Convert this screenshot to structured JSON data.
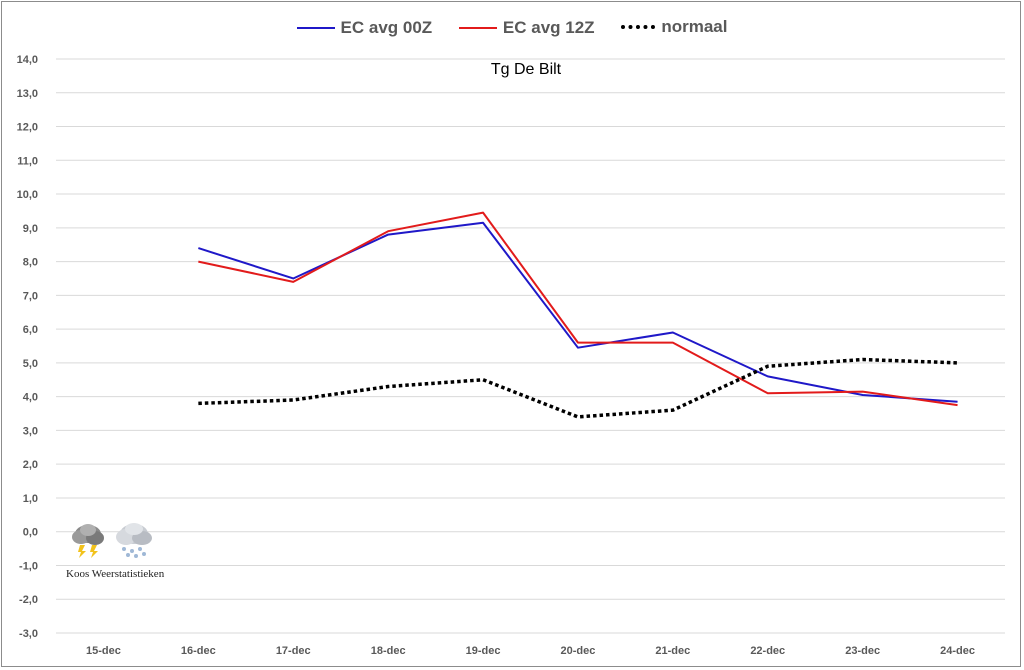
{
  "chart_data": {
    "type": "line",
    "title": "Tg De Bilt",
    "xlabel": "",
    "ylabel": "",
    "categories": [
      "15-dec",
      "16-dec",
      "17-dec",
      "18-dec",
      "19-dec",
      "20-dec",
      "21-dec",
      "22-dec",
      "23-dec",
      "24-dec"
    ],
    "y_ticks": [
      "14,0",
      "13,0",
      "12,0",
      "11,0",
      "10,0",
      "9,0",
      "8,0",
      "7,0",
      "6,0",
      "5,0",
      "4,0",
      "3,0",
      "2,0",
      "1,0",
      "0,0",
      "-1,0",
      "-2,0",
      "-3,0"
    ],
    "ylim": [
      -3,
      14
    ],
    "grid": "horizontal",
    "legend_position": "top",
    "series": [
      {
        "name": "EC avg 00Z",
        "color": "#1f18c8",
        "style": "solid",
        "values": [
          null,
          8.4,
          7.5,
          8.8,
          9.15,
          5.45,
          5.9,
          4.6,
          4.05,
          3.85
        ]
      },
      {
        "name": "EC avg 12Z",
        "color": "#e21b1b",
        "style": "solid",
        "values": [
          null,
          8.0,
          7.4,
          8.9,
          9.45,
          5.6,
          5.6,
          4.1,
          4.15,
          3.75
        ]
      },
      {
        "name": "normaal",
        "color": "#000000",
        "style": "dotted",
        "values": [
          null,
          3.8,
          3.9,
          4.3,
          4.5,
          3.4,
          3.6,
          4.9,
          5.1,
          5.0
        ]
      }
    ]
  },
  "watermark": {
    "text": "Koos Weerstatistieken",
    "icons": [
      "thunderstorm-cloud-icon",
      "snow-cloud-icon"
    ]
  }
}
